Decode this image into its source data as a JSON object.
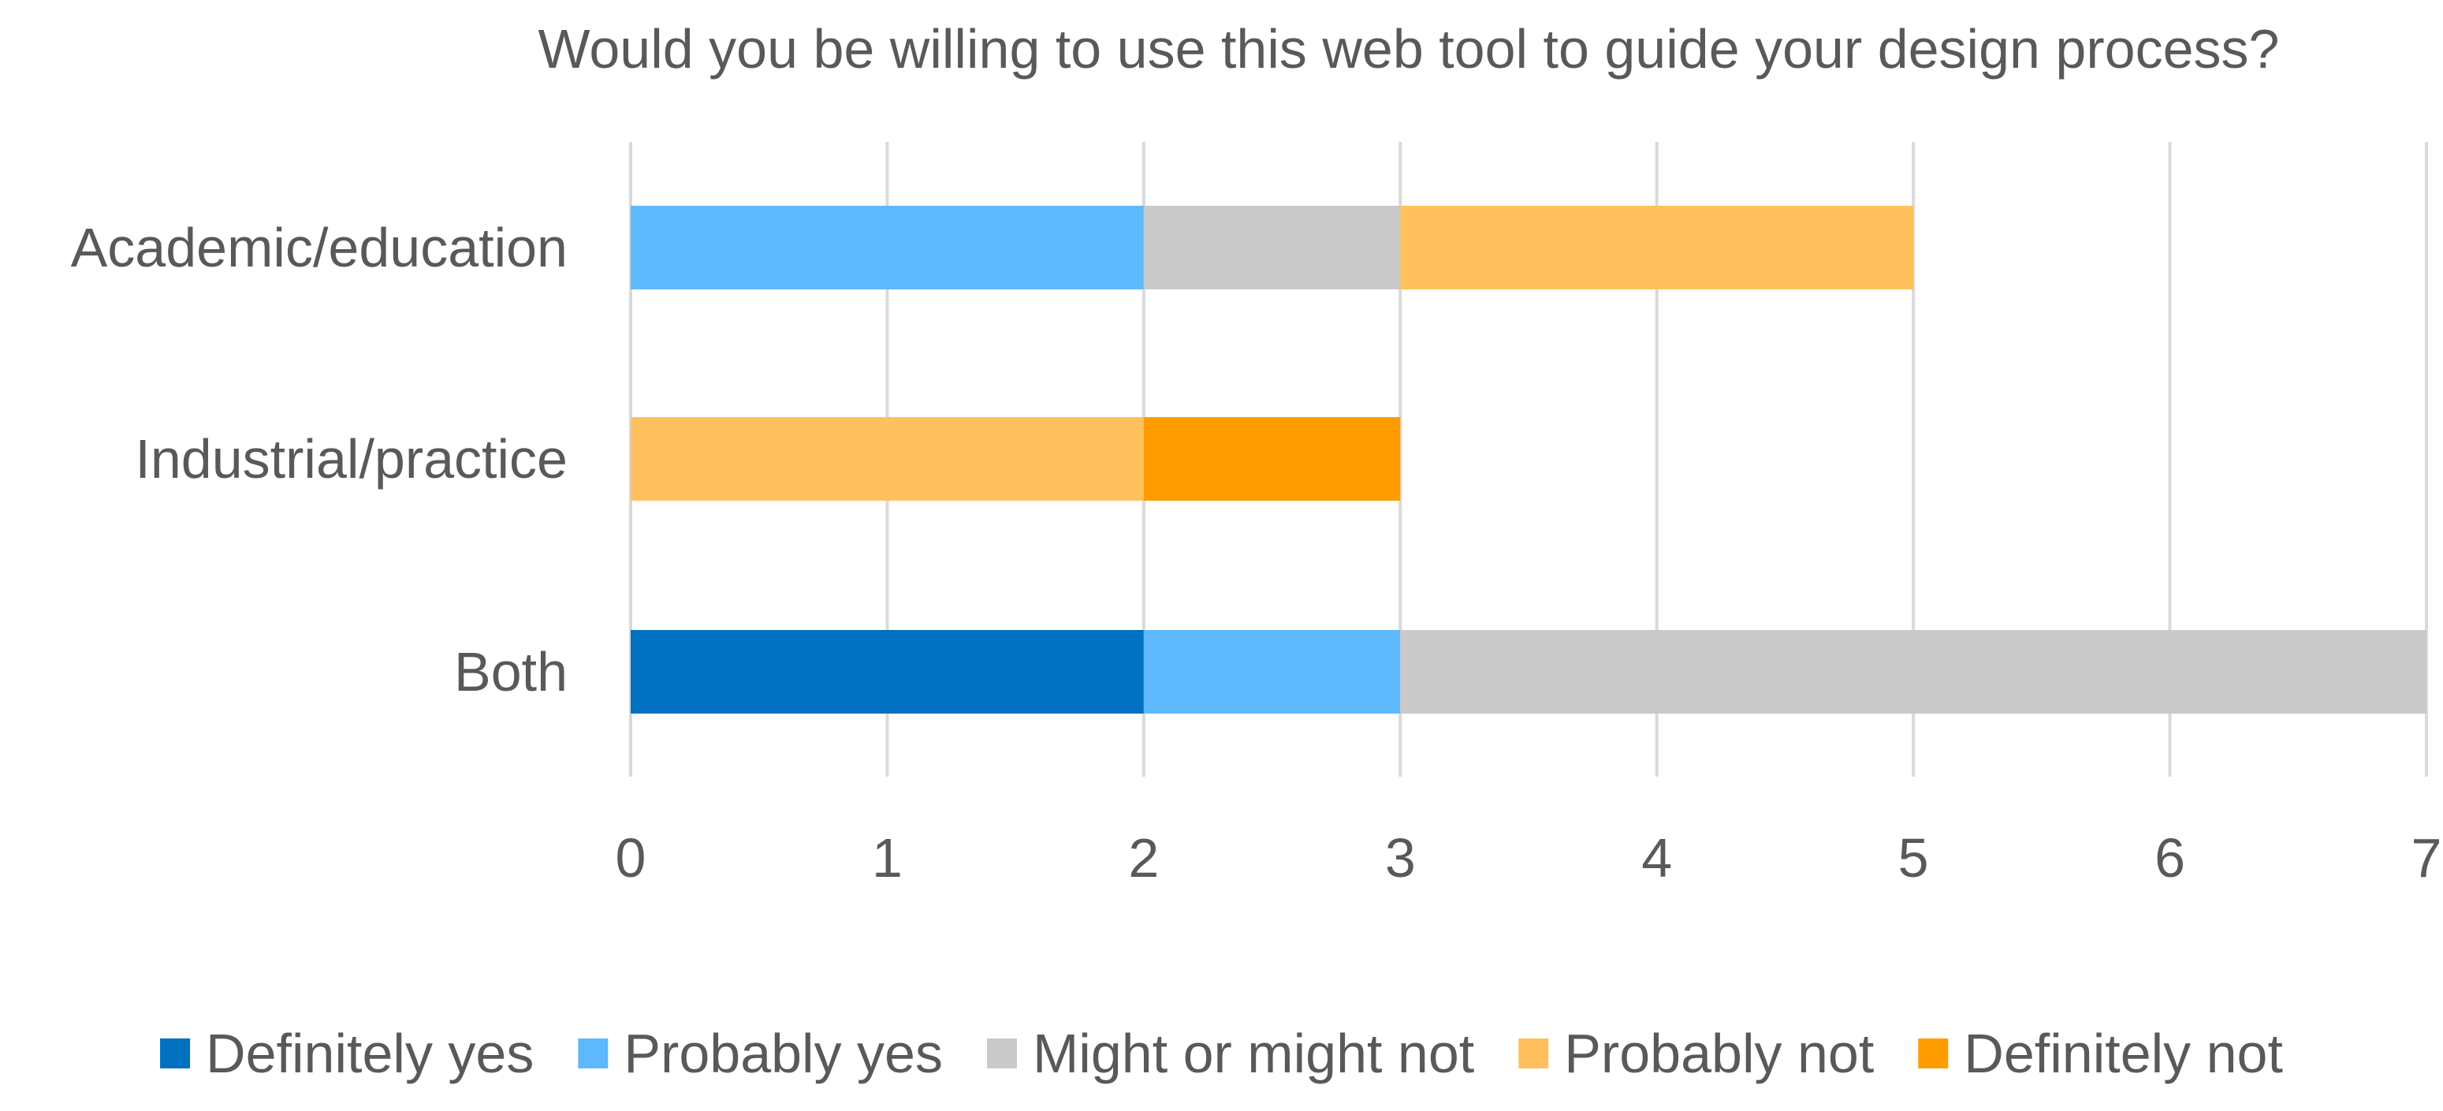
{
  "chart_data": {
    "type": "bar",
    "orientation": "horizontal",
    "stacked": true,
    "title": "Would you be willing to use this web tool to guide your design process?",
    "xlabel": "",
    "ylabel": "",
    "categories": [
      "Academic/education",
      "Industrial/practice",
      "Both"
    ],
    "xlim": [
      0,
      7
    ],
    "x_ticks": [
      0,
      1,
      2,
      3,
      4,
      5,
      6,
      7
    ],
    "grid": true,
    "legend_position": "bottom",
    "series": [
      {
        "name": "Definitely yes",
        "color": "#0070C0",
        "values": [
          0,
          0,
          2
        ]
      },
      {
        "name": "Probably yes",
        "color": "#5EB8FC",
        "values": [
          2,
          0,
          1
        ]
      },
      {
        "name": "Might or might not",
        "color": "#C9C9C9",
        "values": [
          1,
          0,
          4
        ]
      },
      {
        "name": "Probably not",
        "color": "#FFC15E",
        "values": [
          2,
          2,
          0
        ]
      },
      {
        "name": "Definitely not",
        "color": "#FF9C00",
        "values": [
          0,
          1,
          0
        ]
      }
    ]
  }
}
